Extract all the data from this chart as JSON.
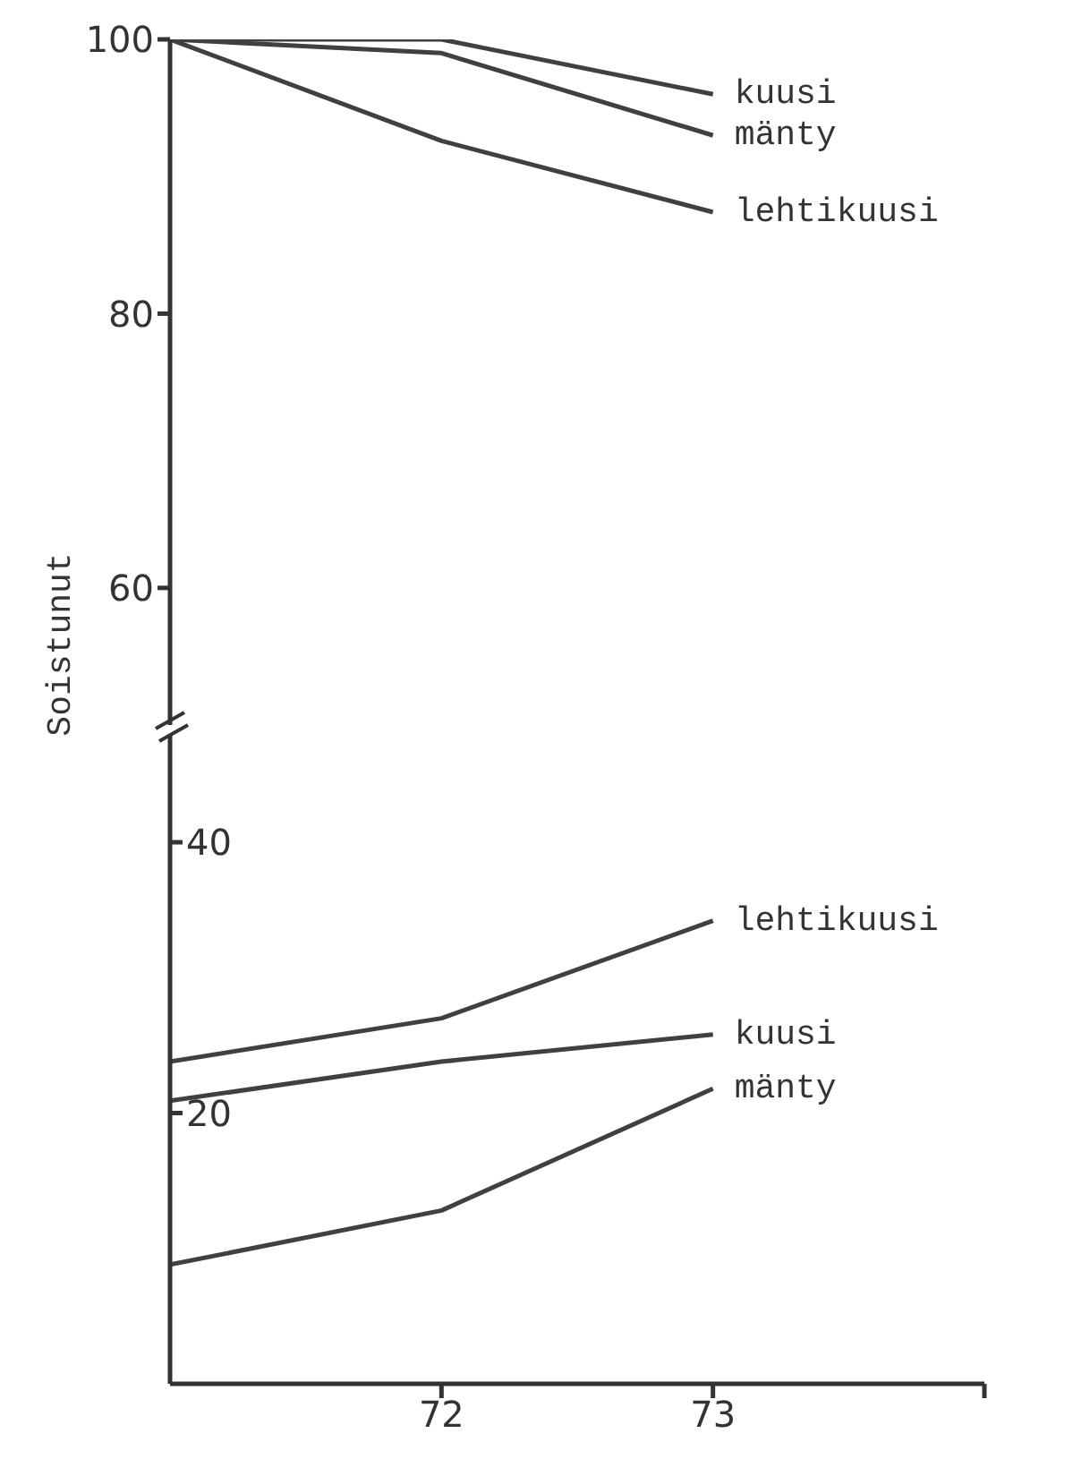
{
  "chart_data": [
    {
      "type": "line",
      "ylabel": "Soistunut",
      "x": [
        71,
        72,
        73
      ],
      "ylim": [
        50,
        100
      ],
      "yticks": [
        60,
        80,
        100
      ],
      "tick_labels": "y",
      "grid": false,
      "legend": false,
      "marker": "none",
      "line_style": "solid",
      "series": [
        {
          "name": "kuusi",
          "color": "#404040",
          "values": [
            100,
            100,
            96
          ]
        },
        {
          "name": "mänty",
          "color": "#404040",
          "values": [
            100,
            99,
            93
          ]
        },
        {
          "name": "lehtikuusi",
          "color": "#404040",
          "values": [
            100,
            92.6,
            87.4
          ]
        }
      ]
    },
    {
      "type": "line",
      "x": [
        71,
        72,
        73
      ],
      "xlim": [
        71,
        74
      ],
      "xticks": [
        72,
        73,
        {
          "value": 74,
          "label": null
        }
      ],
      "ylim": [
        0,
        48
      ],
      "yticks": [
        20,
        40
      ],
      "grid": false,
      "legend": false,
      "marker": "none",
      "line_style": "solid",
      "series": [
        {
          "name": "lehtikuusi",
          "color": "#404040",
          "values": [
            23.8,
            27,
            34.2
          ]
        },
        {
          "name": "kuusi",
          "color": "#404040",
          "values": [
            20.9,
            23.8,
            25.8
          ]
        },
        {
          "name": "mänty",
          "color": "#404040",
          "values": [
            8.8,
            12.8,
            21.8
          ]
        }
      ]
    }
  ]
}
